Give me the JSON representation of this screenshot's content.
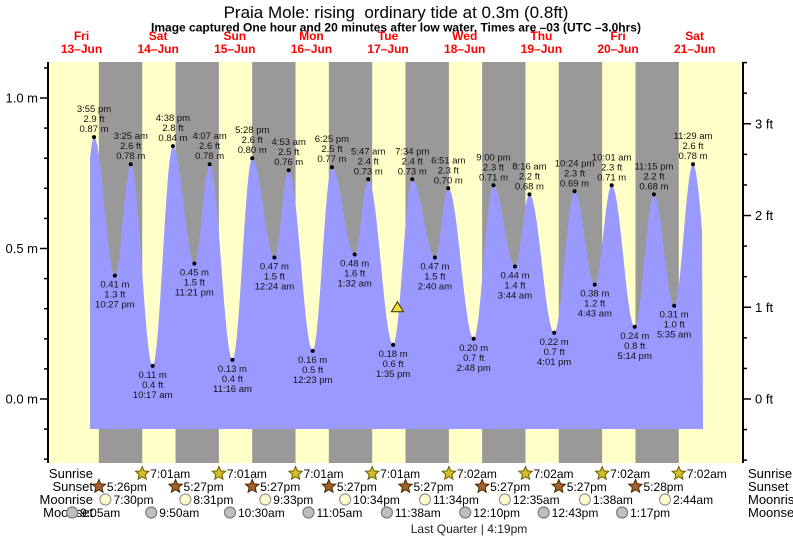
{
  "title": "Praia Mole: rising  ordinary tide at 0.3m (0.8ft)",
  "subtitle": "Image captured One hour and 20 minutes after low water. Times are –03 (UTC –3.0hrs)",
  "days": [
    {
      "name": "Fri",
      "date": "13–Jun"
    },
    {
      "name": "Sat",
      "date": "14–Jun"
    },
    {
      "name": "Sun",
      "date": "15–Jun"
    },
    {
      "name": "Mon",
      "date": "16–Jun"
    },
    {
      "name": "Tue",
      "date": "17–Jun"
    },
    {
      "name": "Wed",
      "date": "18–Jun"
    },
    {
      "name": "Thu",
      "date": "19–Jun"
    },
    {
      "name": "Fri",
      "date": "20–Jun"
    },
    {
      "name": "Sat",
      "date": "21–Jun"
    }
  ],
  "chart_data": {
    "type": "area",
    "ylabel_left": "meters",
    "ylabel_right": "feet",
    "y_axis_left": {
      "unit": "m",
      "tick_labels": [
        "1.0 m",
        "0.5 m",
        "0.0 m"
      ],
      "tick_values": [
        1.0,
        0.5,
        0.0
      ],
      "minor_step_m": 0.1
    },
    "y_axis_right": {
      "unit": "ft",
      "tick_labels": [
        "3 ft",
        "2 ft",
        "1 ft",
        "0 ft"
      ],
      "tick_values_ft": [
        3,
        2,
        1,
        0
      ]
    },
    "ylim_m": [
      -0.22,
      1.12
    ],
    "tide_events": [
      {
        "day": 0,
        "type": "high",
        "time": "3:55 pm",
        "ft": "2.9 ft",
        "m": "0.87 m",
        "height_m": 0.87
      },
      {
        "day": 0,
        "type": "low",
        "time": "10:27 pm",
        "ft": "1.3 ft",
        "m": "0.41 m",
        "height_m": 0.41
      },
      {
        "day": 1,
        "type": "high",
        "time": "3:25 am",
        "ft": "2.6 ft",
        "m": "0.78 m",
        "height_m": 0.78
      },
      {
        "day": 1,
        "type": "low",
        "time": "10:17 am",
        "ft": "0.4 ft",
        "m": "0.11 m",
        "height_m": 0.11
      },
      {
        "day": 1,
        "type": "high",
        "time": "4:38 pm",
        "ft": "2.8 ft",
        "m": "0.84 m",
        "height_m": 0.84
      },
      {
        "day": 1,
        "type": "low",
        "time": "11:21 pm",
        "ft": "1.5 ft",
        "m": "0.45 m",
        "height_m": 0.45
      },
      {
        "day": 2,
        "type": "high",
        "time": "4:07 am",
        "ft": "2.6 ft",
        "m": "0.78 m",
        "height_m": 0.78
      },
      {
        "day": 2,
        "type": "low",
        "time": "11:16 am",
        "ft": "0.4 ft",
        "m": "0.13 m",
        "height_m": 0.13
      },
      {
        "day": 2,
        "type": "high",
        "time": "5:28 pm",
        "ft": "2.6 ft",
        "m": "0.80 m",
        "height_m": 0.8
      },
      {
        "day": 3,
        "type": "low",
        "time": "12:24 am",
        "ft": "1.5 ft",
        "m": "0.47 m",
        "height_m": 0.47
      },
      {
        "day": 3,
        "type": "high",
        "time": "4:53 am",
        "ft": "2.5 ft",
        "m": "0.76 m",
        "height_m": 0.76
      },
      {
        "day": 3,
        "type": "low",
        "time": "12:23 pm",
        "ft": "0.5 ft",
        "m": "0.16 m",
        "height_m": 0.16
      },
      {
        "day": 3,
        "type": "high",
        "time": "6:25 pm",
        "ft": "2.5 ft",
        "m": "0.77 m",
        "height_m": 0.77
      },
      {
        "day": 4,
        "type": "low",
        "time": "1:32 am",
        "ft": "1.6 ft",
        "m": "0.48 m",
        "height_m": 0.48
      },
      {
        "day": 4,
        "type": "high",
        "time": "5:47 am",
        "ft": "2.4 ft",
        "m": "0.73 m",
        "height_m": 0.73
      },
      {
        "day": 4,
        "type": "low",
        "time": "1:35 pm",
        "ft": "0.6 ft",
        "m": "0.18 m",
        "height_m": 0.18
      },
      {
        "day": 4,
        "type": "high",
        "time": "7:34 pm",
        "ft": "2.4 ft",
        "m": "0.73 m",
        "height_m": 0.73
      },
      {
        "day": 5,
        "type": "low",
        "time": "2:40 am",
        "ft": "1.5 ft",
        "m": "0.47 m",
        "height_m": 0.47
      },
      {
        "day": 5,
        "type": "high",
        "time": "6:51 am",
        "ft": "2.3 ft",
        "m": "0.70 m",
        "height_m": 0.7
      },
      {
        "day": 5,
        "type": "low",
        "time": "2:48 pm",
        "ft": "0.7 ft",
        "m": "0.20 m",
        "height_m": 0.2
      },
      {
        "day": 5,
        "type": "high",
        "time": "9:00 pm",
        "ft": "2.3 ft",
        "m": "0.71 m",
        "height_m": 0.71
      },
      {
        "day": 6,
        "type": "low",
        "time": "3:44 am",
        "ft": "1.4 ft",
        "m": "0.44 m",
        "height_m": 0.44
      },
      {
        "day": 6,
        "type": "high",
        "time": "8:16 am",
        "ft": "2.2 ft",
        "m": "0.68 m",
        "height_m": 0.68
      },
      {
        "day": 6,
        "type": "low",
        "time": "4:01 pm",
        "ft": "0.7 ft",
        "m": "0.22 m",
        "height_m": 0.22
      },
      {
        "day": 6,
        "type": "high",
        "time": "10:24 pm",
        "ft": "2.3 ft",
        "m": "0.69 m",
        "height_m": 0.69
      },
      {
        "day": 7,
        "type": "low",
        "time": "4:43 am",
        "ft": "1.2 ft",
        "m": "0.38 m",
        "height_m": 0.38
      },
      {
        "day": 7,
        "type": "high",
        "time": "10:01 am",
        "ft": "2.3 ft",
        "m": "0.71 m",
        "height_m": 0.71
      },
      {
        "day": 7,
        "type": "low",
        "time": "5:14 pm",
        "ft": "0.8 ft",
        "m": "0.24 m",
        "height_m": 0.24
      },
      {
        "day": 7,
        "type": "high",
        "time": "11:15 pm",
        "ft": "2.2 ft",
        "m": "0.68 m",
        "height_m": 0.68
      },
      {
        "day": 8,
        "type": "low",
        "time": "5:35 am",
        "ft": "1.0 ft",
        "m": "0.31 m",
        "height_m": 0.31
      },
      {
        "day": 8,
        "type": "high",
        "time": "11:29 am",
        "ft": "2.6 ft",
        "m": "0.78 m",
        "height_m": 0.78
      }
    ],
    "current_marker": {
      "day": 4,
      "time": "2:55 pm",
      "level_m": 0.3
    }
  },
  "astro": {
    "rows": [
      {
        "key": "sunrise",
        "label": "Sunrise",
        "icon": "sunrise-star-icon",
        "events": [
          {
            "day": 1,
            "time": "7:01am"
          },
          {
            "day": 2,
            "time": "7:01am"
          },
          {
            "day": 3,
            "time": "7:01am"
          },
          {
            "day": 4,
            "time": "7:01am"
          },
          {
            "day": 5,
            "time": "7:02am"
          },
          {
            "day": 6,
            "time": "7:02am"
          },
          {
            "day": 7,
            "time": "7:02am"
          },
          {
            "day": 8,
            "time": "7:02am"
          }
        ]
      },
      {
        "key": "sunset",
        "label": "Sunset",
        "icon": "sunset-star-icon",
        "events": [
          {
            "day": 0,
            "time": "5:26pm"
          },
          {
            "day": 1,
            "time": "5:27pm"
          },
          {
            "day": 2,
            "time": "5:27pm"
          },
          {
            "day": 3,
            "time": "5:27pm"
          },
          {
            "day": 4,
            "time": "5:27pm"
          },
          {
            "day": 5,
            "time": "5:27pm"
          },
          {
            "day": 6,
            "time": "5:27pm"
          },
          {
            "day": 7,
            "time": "5:28pm"
          }
        ]
      },
      {
        "key": "moonrise",
        "label": "Moonrise",
        "icon": "moonrise-circle-icon",
        "events": [
          {
            "day": 0,
            "time": "7:30pm"
          },
          {
            "day": 1,
            "time": "8:31pm"
          },
          {
            "day": 2,
            "time": "9:33pm"
          },
          {
            "day": 3,
            "time": "10:34pm"
          },
          {
            "day": 4,
            "time": "11:34pm"
          },
          {
            "day": 6,
            "time": "12:35am"
          },
          {
            "day": 7,
            "time": "1:38am"
          },
          {
            "day": 8,
            "time": "2:44am"
          }
        ]
      },
      {
        "key": "moonset",
        "label": "Moonset",
        "icon": "moonset-circle-icon",
        "events": [
          {
            "day": 0,
            "time": "9:05am"
          },
          {
            "day": 1,
            "time": "9:50am"
          },
          {
            "day": 2,
            "time": "10:30am"
          },
          {
            "day": 3,
            "time": "11:05am"
          },
          {
            "day": 4,
            "time": "11:38am"
          },
          {
            "day": 5,
            "time": "12:10pm"
          },
          {
            "day": 6,
            "time": "12:43pm"
          },
          {
            "day": 7,
            "time": "1:17pm"
          }
        ]
      }
    ],
    "moon_phase": "Last Quarter | 4:19pm"
  },
  "colors": {
    "day_band": "#ffffc8",
    "night_band": "#999999",
    "tide_fill": "#9999ff",
    "date_label": "#ff0000",
    "axis": "#000000",
    "annotation": "#111111",
    "sunrise_star_fill": "#d6be2a",
    "sunrise_star_stroke": "#6b5e00",
    "sunset_star_fill": "#a5612a",
    "sunset_star_stroke": "#4a2800",
    "moonrise_fill": "#ffffcc",
    "moonrise_stroke": "#999999",
    "moonset_fill": "#bfbfbf",
    "moonset_stroke": "#7d7d7d",
    "marker_fill": "#f0e13c",
    "marker_stroke": "#333300"
  }
}
